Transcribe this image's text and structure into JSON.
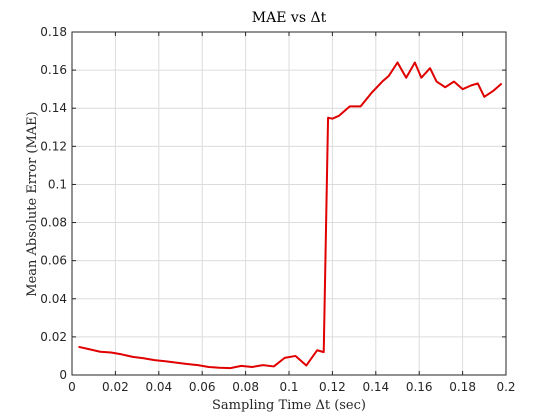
{
  "chart_data": {
    "type": "line",
    "title": "MAE vs Δt",
    "xlabel": "Sampling Time Δt (sec)",
    "ylabel": "Mean Absolute Error (MAE)",
    "xlim": [
      0,
      0.2
    ],
    "ylim": [
      0,
      0.18
    ],
    "grid": true,
    "x_ticks": [
      "0",
      "0.02",
      "0.04",
      "0.06",
      "0.08",
      "0.1",
      "0.12",
      "0.14",
      "0.16",
      "0.18",
      "0.2"
    ],
    "y_ticks": [
      "0",
      "0.02",
      "0.04",
      "0.06",
      "0.08",
      "0.1",
      "0.12",
      "0.14",
      "0.16",
      "0.18"
    ],
    "series": [
      {
        "color": "#e00000",
        "x": [
          0.003,
          0.008,
          0.013,
          0.018,
          0.023,
          0.028,
          0.033,
          0.038,
          0.043,
          0.048,
          0.053,
          0.058,
          0.063,
          0.068,
          0.073,
          0.078,
          0.083,
          0.088,
          0.093,
          0.098,
          0.103,
          0.108,
          0.113,
          0.116,
          0.118,
          0.12,
          0.123,
          0.128,
          0.133,
          0.138,
          0.143,
          0.146,
          0.15,
          0.154,
          0.158,
          0.161,
          0.165,
          0.168,
          0.172,
          0.176,
          0.18,
          0.184,
          0.187,
          0.19,
          0.194,
          0.198
        ],
        "y": [
          0.0148,
          0.0135,
          0.0122,
          0.0118,
          0.0108,
          0.0095,
          0.0088,
          0.0078,
          0.0072,
          0.0065,
          0.0058,
          0.0052,
          0.0042,
          0.0038,
          0.0036,
          0.0048,
          0.0042,
          0.0052,
          0.0045,
          0.009,
          0.01,
          0.005,
          0.013,
          0.012,
          0.135,
          0.1345,
          0.136,
          0.141,
          0.141,
          0.148,
          0.154,
          0.157,
          0.164,
          0.156,
          0.164,
          0.156,
          0.161,
          0.154,
          0.151,
          0.154,
          0.15,
          0.152,
          0.153,
          0.146,
          0.149,
          0.153
        ]
      }
    ]
  }
}
